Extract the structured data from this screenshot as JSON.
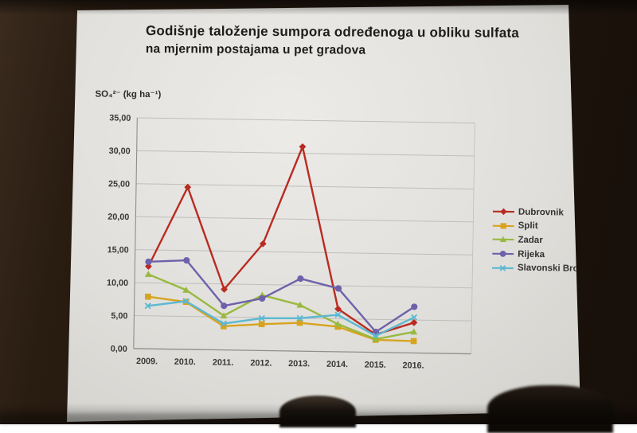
{
  "slide": {
    "title_line1": "Godišnje taloženje sumpora određenoga u obliku sulfata",
    "title_line2": "na mjernim postajama u pet gradova"
  },
  "chart_data": {
    "type": "line",
    "title": "Godišnje taloženje sumpora određenoga u obliku sulfata na mjernim postajama u pet gradova",
    "y_axis_label": "SO₄²⁻ (kg ha⁻¹)",
    "xlabel": "",
    "ylabel": "SO₄²⁻ (kg ha⁻¹)",
    "categories": [
      "2009.",
      "2010.",
      "2011.",
      "2012.",
      "2013.",
      "2014.",
      "2015.",
      "2016."
    ],
    "series": [
      {
        "name": "Dubrovnik",
        "color": "#b92b21",
        "marker": "diamond",
        "values": [
          12.5,
          24.6,
          9.2,
          16.2,
          31.0,
          6.5,
          2.7,
          4.6
        ]
      },
      {
        "name": "Split",
        "color": "#d8a31f",
        "marker": "square",
        "values": [
          7.9,
          7.2,
          3.6,
          4.0,
          4.3,
          3.8,
          1.9,
          1.8
        ]
      },
      {
        "name": "Zadar",
        "color": "#99b93f",
        "marker": "triangle",
        "values": [
          11.3,
          9.0,
          5.2,
          8.4,
          7.0,
          4.2,
          2.0,
          3.2
        ]
      },
      {
        "name": "Rijeka",
        "color": "#6e61ab",
        "marker": "circle",
        "values": [
          13.2,
          13.5,
          6.7,
          7.9,
          11.0,
          9.6,
          3.1,
          7.0
        ]
      },
      {
        "name": "Slavonski Brod",
        "color": "#5cb8d1",
        "marker": "x",
        "values": [
          6.5,
          7.3,
          4.0,
          4.9,
          5.0,
          5.6,
          2.5,
          5.4
        ]
      }
    ],
    "ylim": [
      0,
      35
    ],
    "ytick_step": 5,
    "ytick_labels": [
      "0,00",
      "5,00",
      "10,00",
      "15,00",
      "20,00",
      "25,00",
      "30,00",
      "35,00"
    ],
    "grid": true,
    "legend_position": "right"
  },
  "colors": {
    "grid": "#bfbeba",
    "axis": "#8f8e8a",
    "tick_text": "#383735"
  }
}
